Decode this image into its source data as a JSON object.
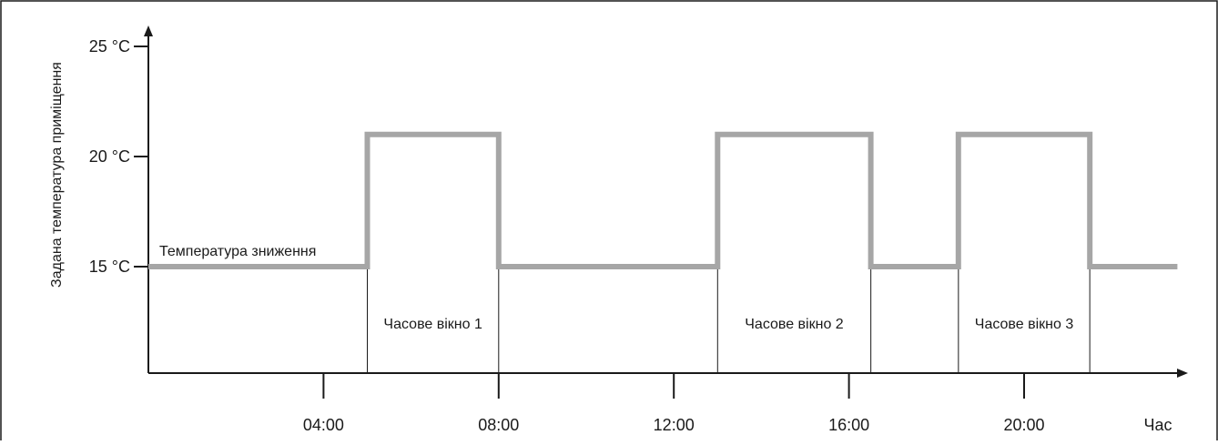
{
  "chart_data": {
    "type": "line",
    "ylabel": "Задана температура приміщення",
    "xlabel": "Час",
    "x_ticks": [
      "04:00",
      "08:00",
      "12:00",
      "16:00",
      "20:00"
    ],
    "y_ticks": [
      "15 °C",
      "20 °C",
      "25 °C"
    ],
    "y_tick_values": [
      15,
      20,
      25
    ],
    "xlim": [
      "00:00",
      "23:30"
    ],
    "ylim": [
      10,
      25
    ],
    "grid": false,
    "series": [
      {
        "step": true,
        "x": [
          "00:00",
          "05:00",
          "05:00",
          "08:00",
          "08:00",
          "13:00",
          "13:00",
          "16:30",
          "16:30",
          "18:30",
          "18:30",
          "21:30",
          "21:30",
          "23:30"
        ],
        "y": [
          15,
          15,
          21,
          21,
          15,
          15,
          21,
          21,
          15,
          15,
          21,
          21,
          15,
          15
        ]
      }
    ],
    "time_windows": [
      {
        "label": "Часове вікно 1",
        "start": "05:00",
        "end": "08:00"
      },
      {
        "label": "Часове вікно 2",
        "start": "13:00",
        "end": "16:30"
      },
      {
        "label": "Часове вікно 3",
        "start": "18:30",
        "end": "21:30"
      }
    ],
    "annotations": [
      {
        "text": "Температура зниження",
        "x": "00:15",
        "y": 15
      }
    ],
    "colors": {
      "line": "#a6a6a6",
      "axis": "#1a1a1a",
      "frame": "#1a1a1a"
    }
  }
}
